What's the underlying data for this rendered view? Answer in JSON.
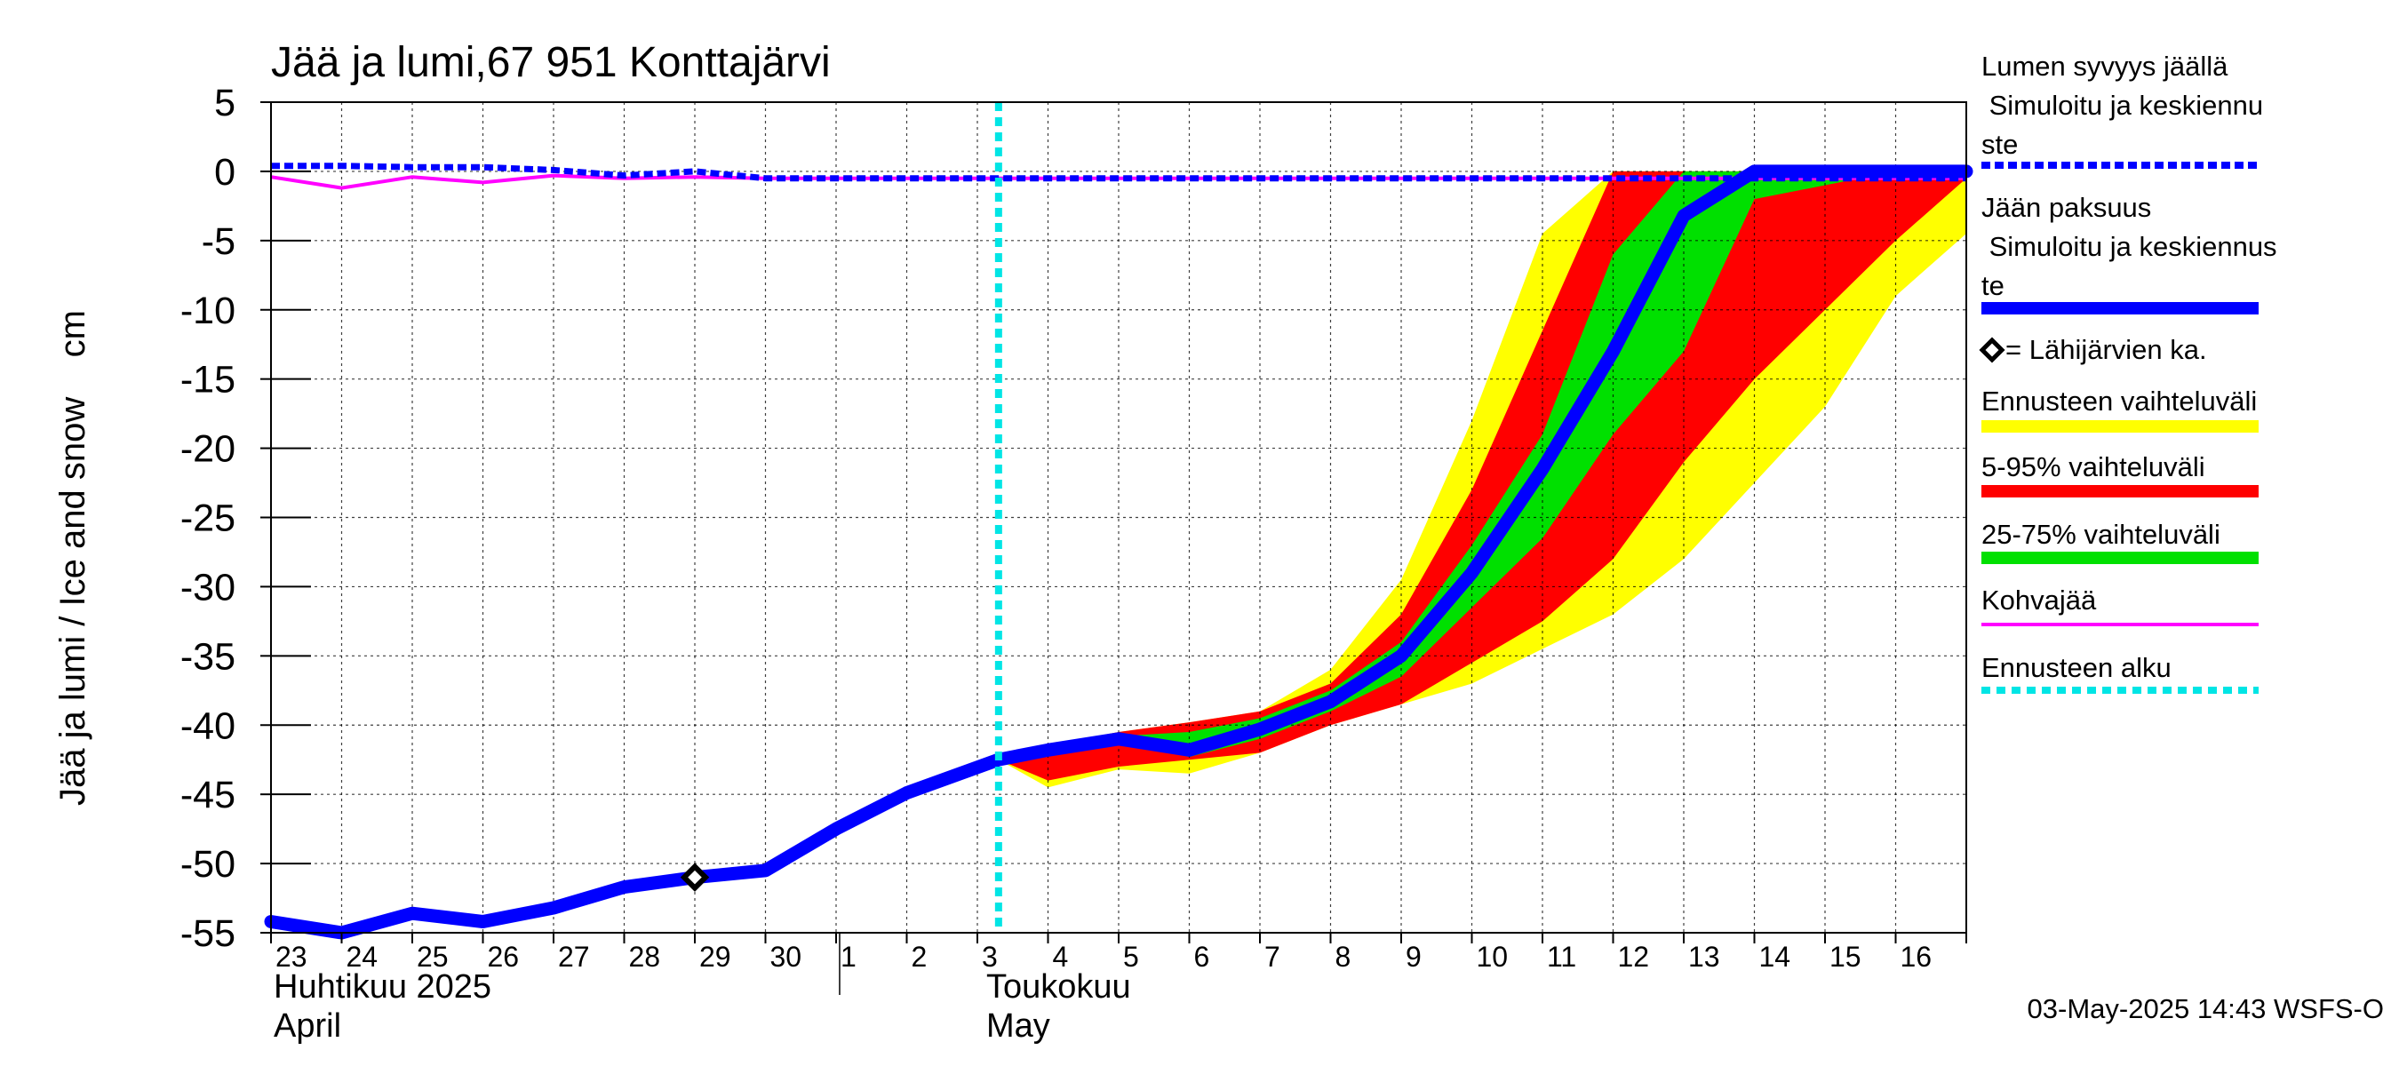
{
  "chart_data": {
    "type": "area",
    "title": "Jää ja lumi,67 951 Konttajärvi",
    "ylabel": "Jää ja lumi / Ice and snow    cm",
    "xlabel": "",
    "ylim": [
      -55,
      5
    ],
    "yticks": [
      "5",
      "0",
      "-5",
      "-10",
      "-15",
      "-20",
      "-25",
      "-30",
      "-35",
      "-40",
      "-45",
      "-50",
      "-55"
    ],
    "x_days": [
      "23",
      "24",
      "25",
      "26",
      "27",
      "28",
      "29",
      "30",
      "1",
      "2",
      "3",
      "4",
      "5",
      "6",
      "7",
      "8",
      "9",
      "10",
      "11",
      "12",
      "13",
      "14",
      "15",
      "16"
    ],
    "months": [
      {
        "fi": "Huhtikuu  2025",
        "en": "April"
      },
      {
        "fi": "Toukokuu",
        "en": "May"
      }
    ],
    "grid": true,
    "legend_position": "right",
    "legend": [
      {
        "label": "Lumen syvyys jäällä\n   Simuloitu ja keskiennu\nste",
        "color": "#0000ff",
        "style": "dashed"
      },
      {
        "label": "Jään paksuus\n   Simuloitu ja keskiennus\nte",
        "color": "#0000ff",
        "style": "solid"
      },
      {
        "label": "= Lähijärvien ka.",
        "color": "#000000",
        "style": "diamond"
      },
      {
        "label": "Ennusteen vaihteluväli",
        "color": "#ffff00",
        "style": "band"
      },
      {
        "label": "5-95% vaihteluväli",
        "color": "#ff0000",
        "style": "band"
      },
      {
        "label": "25-75% vaihteluväli",
        "color": "#00e000",
        "style": "band"
      },
      {
        "label": "Kohvajää",
        "color": "#ff00ff",
        "style": "line"
      },
      {
        "label": "Ennusteen alku",
        "color": "#00e5e5",
        "style": "dotted"
      }
    ],
    "forecast_start_x": 10.3,
    "ice_thickness": {
      "x": [
        0,
        1,
        2,
        3,
        4,
        5,
        6,
        7,
        8,
        9,
        10.3,
        11,
        12,
        13,
        14,
        15,
        16,
        17,
        18,
        19,
        20,
        21,
        22,
        23,
        24
      ],
      "y": [
        -54.2,
        -55.0,
        -53.6,
        -54.2,
        -53.2,
        -51.7,
        -51.0,
        -50.5,
        -47.5,
        -44.9,
        -42.5,
        -41.8,
        -41.0,
        -41.8,
        -40.3,
        -38.3,
        -35.0,
        -29.0,
        -21.5,
        -13.0,
        -3.2,
        0,
        0,
        0,
        0
      ]
    },
    "snow_on_ice": {
      "x": [
        0,
        1,
        2,
        3,
        4,
        5,
        6,
        7,
        8,
        9,
        10,
        11,
        12,
        13,
        14,
        15,
        16,
        17,
        18,
        19,
        20,
        21,
        22,
        23,
        24
      ],
      "y": [
        0.4,
        0.4,
        0.3,
        0.3,
        0.1,
        -0.3,
        0.0,
        -0.5,
        -0.5,
        -0.5,
        -0.5,
        -0.5,
        -0.5,
        -0.5,
        -0.5,
        -0.5,
        -0.5,
        -0.5,
        -0.5,
        -0.5,
        -0.5,
        -0.5,
        -0.5,
        -0.5,
        -0.5
      ]
    },
    "slush_ice": {
      "x": [
        0,
        1,
        2,
        3,
        4,
        5,
        6,
        7,
        8,
        9,
        10,
        11,
        12,
        13,
        14,
        15,
        16,
        17,
        18,
        19,
        20,
        21,
        22,
        23,
        24
      ],
      "y": [
        -0.4,
        -1.2,
        -0.4,
        -0.8,
        -0.3,
        -0.5,
        -0.4,
        -0.5,
        -0.5,
        -0.5,
        -0.5,
        -0.5,
        -0.5,
        -0.5,
        -0.5,
        -0.5,
        -0.5,
        -0.5,
        -0.5,
        -0.5,
        -0.5,
        -0.5,
        -0.5,
        -0.5,
        -0.5
      ]
    },
    "lake_average": {
      "x": [
        6
      ],
      "y": [
        -51.0
      ]
    },
    "bands": {
      "x": [
        10.3,
        11,
        12,
        13,
        14,
        15,
        16,
        17,
        18,
        19,
        20,
        21,
        22,
        23,
        24
      ],
      "range_upper": [
        -42.5,
        -41.5,
        -40.5,
        -39.8,
        -39.0,
        -36.0,
        -29.5,
        -18.0,
        -4.5,
        0,
        0,
        0,
        0,
        0,
        0
      ],
      "p95_upper": [
        -42.5,
        -41.5,
        -40.5,
        -39.8,
        -39.0,
        -37.0,
        -32.0,
        -23.0,
        -11.5,
        0,
        0,
        0,
        0,
        0,
        0
      ],
      "p75_upper": [
        -42.5,
        -41.8,
        -40.8,
        -40.5,
        -39.5,
        -37.5,
        -34.0,
        -27.0,
        -19.0,
        -6.0,
        0,
        0,
        0,
        0,
        0
      ],
      "p25_lower": [
        -42.5,
        -41.8,
        -41.2,
        -42.3,
        -41.0,
        -39.0,
        -36.5,
        -31.5,
        -26.5,
        -19.0,
        -13.0,
        -2.0,
        -1.0,
        0,
        0
      ],
      "p5_lower": [
        -42.5,
        -44.0,
        -43.0,
        -42.5,
        -42.0,
        -40.0,
        -38.5,
        -35.5,
        -32.5,
        -28.0,
        -21.0,
        -15.0,
        -10.0,
        -5.0,
        -0.5
      ],
      "range_lower": [
        -42.5,
        -44.5,
        -43.2,
        -43.5,
        -42.0,
        -40.0,
        -38.5,
        -37.0,
        -34.5,
        -32.0,
        -28.0,
        -22.5,
        -17.0,
        -9.0,
        -4.5
      ]
    }
  },
  "timestamp": "03-May-2025 14:43 WSFS-O"
}
